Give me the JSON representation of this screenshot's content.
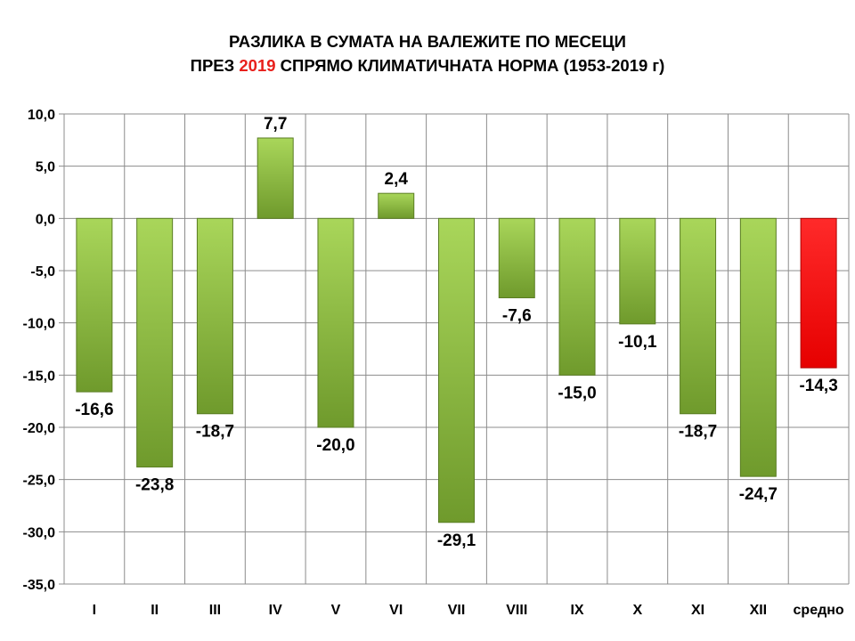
{
  "title": {
    "line1": "РАЗЛИКА В СУМАТА НА ВАЛЕЖИТЕ ПО МЕСЕЦИ",
    "line2_pre": "ПРЕЗ ",
    "line2_highlight": "2019",
    "line2_post": " СПРЯМО КЛИМАТИЧНАТА НОРМА  (1953-2019 г)",
    "highlight_color": "#e8201c"
  },
  "chart_data": {
    "type": "bar",
    "title": "РАЗЛИКА В СУМАТА НА ВАЛЕЖИТЕ ПО МЕСЕЦИ ПРЕЗ 2019 СПРЯМО КЛИМАТИЧНАТА НОРМА  (1953-2019 г)",
    "categories": [
      "I",
      "II",
      "III",
      "IV",
      "V",
      "VI",
      "VII",
      "VIII",
      "IX",
      "X",
      "XI",
      "XII",
      "средно"
    ],
    "values": [
      -16.6,
      -23.8,
      -18.7,
      7.7,
      -20.0,
      2.4,
      -29.1,
      -7.6,
      -15.0,
      -10.1,
      -18.7,
      -24.7,
      -14.3
    ],
    "data_labels": [
      "-16,6",
      "-23,8",
      "-18,7",
      "7,7",
      "-20,0",
      "2,4",
      "-29,1",
      "-7,6",
      "-15,0",
      "-10,1",
      "-18,7",
      "-24,7",
      "-14,3"
    ],
    "bar_colors": [
      "#8dbb3f",
      "#8dbb3f",
      "#8dbb3f",
      "#8dbb3f",
      "#8dbb3f",
      "#8dbb3f",
      "#8dbb3f",
      "#8dbb3f",
      "#8dbb3f",
      "#8dbb3f",
      "#8dbb3f",
      "#8dbb3f",
      "#ff0000"
    ],
    "ylim": [
      -35,
      10
    ],
    "y_ticks": [
      10,
      5,
      0,
      -5,
      -10,
      -15,
      -20,
      -25,
      -30,
      -35
    ],
    "y_tick_labels": [
      "10,0",
      "5,0",
      "0,0",
      "-5,0",
      "-10,0",
      "-15,0",
      "-20,0",
      "-25,0",
      "-30,0",
      "-35,0"
    ],
    "grid": true,
    "legend": "none",
    "xlabel": "",
    "ylabel": ""
  }
}
